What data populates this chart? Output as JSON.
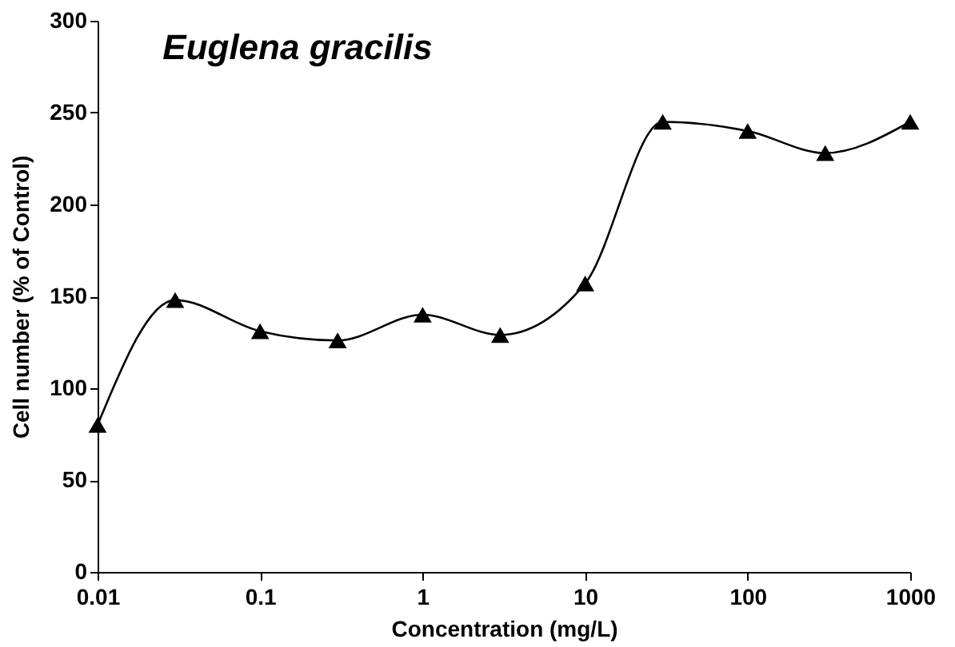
{
  "chart_data": {
    "type": "line",
    "title": "Euglena gracilis",
    "xlabel": "Concentration (mg/L)",
    "ylabel": "Cell number (% of Control)",
    "x": [
      0.01,
      0.03,
      0.1,
      0.3,
      1,
      3,
      10,
      30,
      100,
      300,
      1000
    ],
    "series": [
      {
        "color": "#000000",
        "values": [
          80,
          148,
          131,
          126,
          140,
          129,
          157,
          245,
          240,
          228,
          245
        ]
      }
    ],
    "log": "x",
    "xlim": [
      0.01,
      1000
    ],
    "xticks": [
      0.01,
      0.1,
      1,
      10,
      100,
      1000
    ],
    "ylim": [
      0,
      300
    ],
    "yticks": [
      0,
      50,
      100,
      150,
      200,
      250,
      300
    ],
    "marker": "triangle",
    "line_style": "solid",
    "grid": false,
    "legend": false
  }
}
